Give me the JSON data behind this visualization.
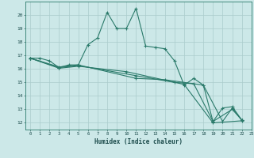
{
  "title": "",
  "xlabel": "Humidex (Indice chaleur)",
  "bg_color": "#cce8e8",
  "grid_color": "#aacccc",
  "line_color": "#2a7a6a",
  "xlim": [
    -0.5,
    23
  ],
  "ylim": [
    11.5,
    21
  ],
  "xticks": [
    0,
    1,
    2,
    3,
    4,
    5,
    6,
    7,
    8,
    9,
    10,
    11,
    12,
    13,
    14,
    15,
    16,
    17,
    18,
    19,
    20,
    21,
    22,
    23
  ],
  "yticks": [
    12,
    13,
    14,
    15,
    16,
    17,
    18,
    19,
    20
  ],
  "series1": [
    [
      0,
      16.8
    ],
    [
      1,
      16.8
    ],
    [
      2,
      16.6
    ],
    [
      3,
      16.1
    ],
    [
      4,
      16.3
    ],
    [
      5,
      16.3
    ],
    [
      6,
      17.8
    ],
    [
      7,
      18.3
    ],
    [
      8,
      20.2
    ],
    [
      9,
      19.0
    ],
    [
      10,
      19.0
    ],
    [
      11,
      20.5
    ],
    [
      12,
      17.7
    ],
    [
      13,
      17.6
    ],
    [
      14,
      17.5
    ],
    [
      15,
      16.6
    ],
    [
      16,
      14.8
    ],
    [
      17,
      15.3
    ],
    [
      18,
      14.8
    ],
    [
      19,
      12.1
    ],
    [
      20,
      13.1
    ],
    [
      21,
      13.2
    ],
    [
      22,
      12.2
    ]
  ],
  "series2": [
    [
      0,
      16.8
    ],
    [
      3,
      16.1
    ],
    [
      5,
      16.25
    ],
    [
      11,
      15.5
    ],
    [
      15,
      15.0
    ],
    [
      17,
      14.9
    ],
    [
      19,
      12.1
    ],
    [
      21,
      13.0
    ],
    [
      22,
      12.2
    ]
  ],
  "series3": [
    [
      0,
      16.8
    ],
    [
      3,
      16.15
    ],
    [
      5,
      16.3
    ],
    [
      11,
      15.3
    ],
    [
      14,
      15.2
    ],
    [
      18,
      14.8
    ],
    [
      20,
      12.1
    ],
    [
      21,
      13.1
    ],
    [
      22,
      12.2
    ]
  ],
  "series4": [
    [
      0,
      16.8
    ],
    [
      3,
      16.05
    ],
    [
      5,
      16.2
    ],
    [
      10,
      15.8
    ],
    [
      16,
      14.85
    ],
    [
      19,
      12.0
    ],
    [
      22,
      12.15
    ]
  ]
}
